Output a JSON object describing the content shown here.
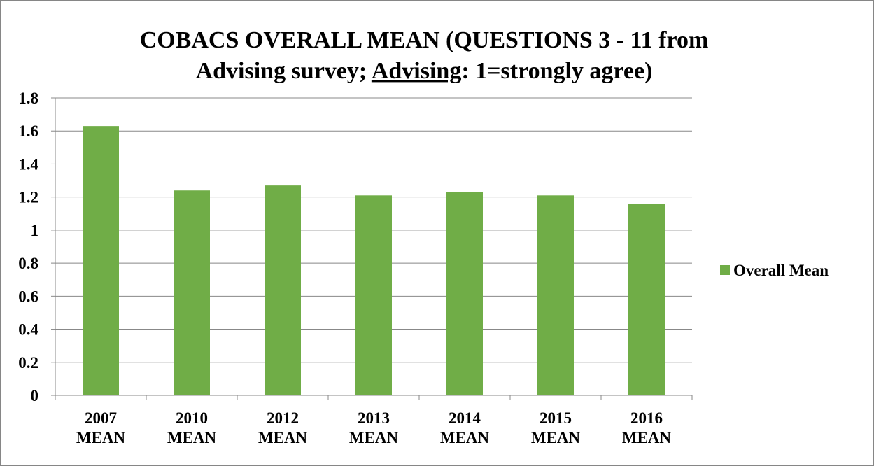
{
  "chart_data": {
    "type": "bar",
    "title": [
      "COBACS OVERALL MEAN (QUESTIONS 3 - 11 from",
      "Advising survey; ",
      "Advising",
      ": 1=strongly agree)"
    ],
    "categories": [
      "2007 MEAN",
      "2010 MEAN",
      "2012 MEAN",
      "2013 MEAN",
      "2014 MEAN",
      "2015 MEAN",
      "2016 MEAN"
    ],
    "series": [
      {
        "name": "Overall Mean",
        "color": "#70ad47",
        "values": [
          1.63,
          1.24,
          1.27,
          1.21,
          1.23,
          1.21,
          1.16
        ]
      }
    ],
    "ylim": [
      0,
      1.8
    ],
    "yticks": [
      0,
      0.2,
      0.4,
      0.6,
      0.8,
      1,
      1.2,
      1.4,
      1.6,
      1.8
    ],
    "grid": true,
    "legend": "right"
  }
}
